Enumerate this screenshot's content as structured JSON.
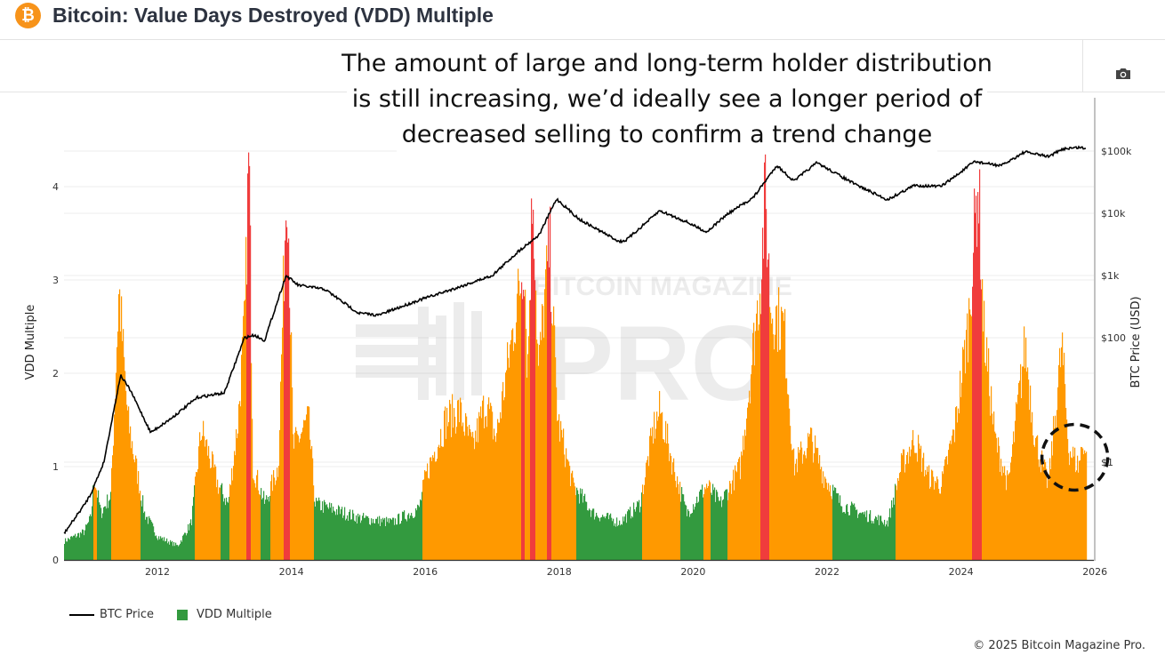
{
  "header": {
    "title": "Bitcoin: Value Days Destroyed (VDD) Multiple",
    "logo_icon": "bitcoin-logo-icon",
    "logo_glyph": "₿"
  },
  "toolbar": {
    "camera_icon": "camera-icon"
  },
  "annotation": {
    "lines": [
      "The amount of large and long-term holder distribution",
      "is still increasing, we’d ideally see a longer period of",
      "decreased selling to confirm a trend change"
    ]
  },
  "watermark": {
    "text_top": "BITCOIN MAGAZINE",
    "text_main": "PRO"
  },
  "legend": {
    "btc_price": "BTC Price",
    "vdd_multiple": "VDD Multiple"
  },
  "copyright": "© 2025 Bitcoin Magazine Pro.",
  "chart_data": {
    "type": "bar+line",
    "title": "Bitcoin: Value Days Destroyed (VDD) Multiple",
    "ylabel": "VDD Multiple",
    "y2label": "BTC Price (USD)",
    "ylim": [
      0,
      4.5
    ],
    "y2_scale": "log",
    "y2_ticks": [
      "$1",
      "$100",
      "$1k",
      "$10k",
      "$100k"
    ],
    "y2_tick_values": [
      1,
      100,
      1000,
      10000,
      100000
    ],
    "yticks": [
      0,
      1,
      2,
      3,
      4
    ],
    "xticks": [
      "2012",
      "2014",
      "2016",
      "2018",
      "2020",
      "2022",
      "2024",
      "2026"
    ],
    "xlim": [
      2010.6,
      2026.0
    ],
    "grid": true,
    "legend_position": "bottom-left",
    "colors": {
      "low": "#339a3f",
      "mid": "#ff9900",
      "high": "#f03c3c",
      "price": "#000000"
    },
    "color_thresholds": {
      "green_below": 0.75,
      "red_above": 3.05
    },
    "annotation_circle_at": {
      "x": 2025.7,
      "vdd": 1.1
    },
    "series": [
      {
        "name": "VDD Multiple",
        "points": [
          [
            2010.6,
            0.2
          ],
          [
            2010.9,
            0.3
          ],
          [
            2011.0,
            0.45
          ],
          [
            2011.05,
            0.9
          ],
          [
            2011.15,
            0.5
          ],
          [
            2011.3,
            0.7
          ],
          [
            2011.42,
            2.9
          ],
          [
            2011.55,
            1.5
          ],
          [
            2011.8,
            0.5
          ],
          [
            2012.0,
            0.25
          ],
          [
            2012.3,
            0.15
          ],
          [
            2012.5,
            0.4
          ],
          [
            2012.65,
            1.4
          ],
          [
            2012.9,
            0.8
          ],
          [
            2013.05,
            0.6
          ],
          [
            2013.2,
            1.5
          ],
          [
            2013.3,
            2.6
          ],
          [
            2013.36,
            4.4
          ],
          [
            2013.42,
            1.0
          ],
          [
            2013.6,
            0.6
          ],
          [
            2013.8,
            1.0
          ],
          [
            2013.93,
            4.3
          ],
          [
            2014.02,
            1.2
          ],
          [
            2014.25,
            1.5
          ],
          [
            2014.35,
            0.6
          ],
          [
            2014.8,
            0.5
          ],
          [
            2015.0,
            0.45
          ],
          [
            2015.5,
            0.4
          ],
          [
            2015.9,
            0.55
          ],
          [
            2016.0,
            0.9
          ],
          [
            2016.3,
            1.5
          ],
          [
            2016.5,
            1.6
          ],
          [
            2016.7,
            1.2
          ],
          [
            2016.9,
            1.7
          ],
          [
            2017.05,
            1.3
          ],
          [
            2017.25,
            2.2
          ],
          [
            2017.42,
            3.0
          ],
          [
            2017.47,
            3.3
          ],
          [
            2017.52,
            2.0
          ],
          [
            2017.6,
            4.1
          ],
          [
            2017.68,
            2.0
          ],
          [
            2017.85,
            3.4
          ],
          [
            2017.97,
            1.5
          ],
          [
            2018.2,
            0.8
          ],
          [
            2018.5,
            0.5
          ],
          [
            2018.9,
            0.4
          ],
          [
            2019.2,
            0.6
          ],
          [
            2019.4,
            1.4
          ],
          [
            2019.5,
            1.6
          ],
          [
            2019.7,
            1.0
          ],
          [
            2019.9,
            0.5
          ],
          [
            2020.2,
            0.8
          ],
          [
            2020.4,
            0.6
          ],
          [
            2020.7,
            1.0
          ],
          [
            2020.85,
            2.0
          ],
          [
            2021.0,
            3.0
          ],
          [
            2021.07,
            3.9
          ],
          [
            2021.15,
            2.7
          ],
          [
            2021.35,
            2.5
          ],
          [
            2021.5,
            1.0
          ],
          [
            2021.75,
            1.3
          ],
          [
            2021.95,
            0.9
          ],
          [
            2022.2,
            0.6
          ],
          [
            2022.5,
            0.5
          ],
          [
            2022.9,
            0.4
          ],
          [
            2023.1,
            1.0
          ],
          [
            2023.3,
            1.3
          ],
          [
            2023.5,
            0.9
          ],
          [
            2023.7,
            0.8
          ],
          [
            2023.9,
            1.4
          ],
          [
            2024.1,
            2.5
          ],
          [
            2024.25,
            4.1
          ],
          [
            2024.33,
            2.5
          ],
          [
            2024.5,
            1.3
          ],
          [
            2024.7,
            0.8
          ],
          [
            2024.95,
            2.3
          ],
          [
            2025.1,
            1.3
          ],
          [
            2025.3,
            0.8
          ],
          [
            2025.5,
            2.3
          ],
          [
            2025.6,
            1.2
          ],
          [
            2025.75,
            1.0
          ],
          [
            2025.82,
            1.3
          ],
          [
            2025.88,
            1.0
          ]
        ]
      },
      {
        "name": "BTC Price",
        "points": [
          [
            2010.6,
            0.07
          ],
          [
            2010.9,
            0.2
          ],
          [
            2011.0,
            0.3
          ],
          [
            2011.2,
            1
          ],
          [
            2011.45,
            25
          ],
          [
            2011.6,
            14
          ],
          [
            2011.9,
            3
          ],
          [
            2012.2,
            5
          ],
          [
            2012.6,
            11
          ],
          [
            2013.0,
            13
          ],
          [
            2013.3,
            100
          ],
          [
            2013.45,
            110
          ],
          [
            2013.6,
            90
          ],
          [
            2013.92,
            1000
          ],
          [
            2014.1,
            700
          ],
          [
            2014.5,
            600
          ],
          [
            2015.0,
            250
          ],
          [
            2015.3,
            230
          ],
          [
            2015.9,
            400
          ],
          [
            2016.5,
            650
          ],
          [
            2017.0,
            1000
          ],
          [
            2017.4,
            2500
          ],
          [
            2017.7,
            4500
          ],
          [
            2017.96,
            17000
          ],
          [
            2018.3,
            8000
          ],
          [
            2018.9,
            3500
          ],
          [
            2019.0,
            3700
          ],
          [
            2019.5,
            11000
          ],
          [
            2019.9,
            7300
          ],
          [
            2020.2,
            5000
          ],
          [
            2020.5,
            9500
          ],
          [
            2020.9,
            18000
          ],
          [
            2021.25,
            59000
          ],
          [
            2021.5,
            33000
          ],
          [
            2021.85,
            65000
          ],
          [
            2022.4,
            30000
          ],
          [
            2022.9,
            16500
          ],
          [
            2023.3,
            28000
          ],
          [
            2023.7,
            27000
          ],
          [
            2023.95,
            42000
          ],
          [
            2024.2,
            68000
          ],
          [
            2024.6,
            58000
          ],
          [
            2024.95,
            97000
          ],
          [
            2025.3,
            82000
          ],
          [
            2025.55,
            110000
          ],
          [
            2025.8,
            115000
          ],
          [
            2025.88,
            105000
          ]
        ]
      }
    ]
  }
}
